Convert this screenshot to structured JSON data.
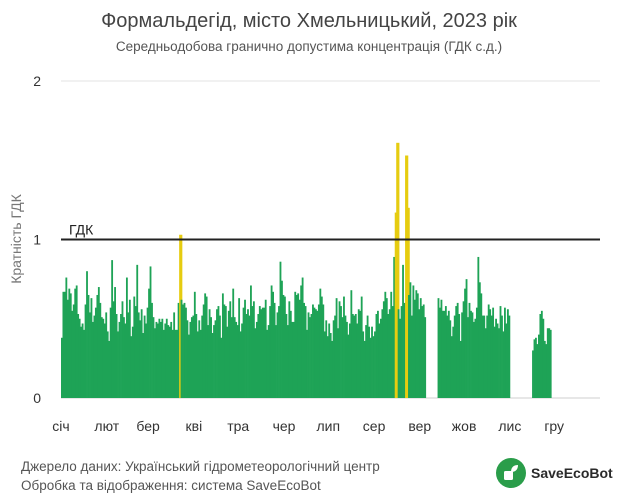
{
  "header": {
    "title": "Формальдегід, місто Хмельницький, 2023 рік",
    "subtitle": "Середньодобова гранично допустима концентрація (ГДК с.д.)"
  },
  "footer": {
    "source_line": "Джерело даних: Український гідрометеорологічний центр",
    "processing_line": "Обробка та відображення: система SaveEcoBot",
    "brand": "SaveEcoBot",
    "brand_icon": "saveecobot-logo-icon"
  },
  "chart_data": {
    "type": "bar",
    "ylabel": "Кратність ГДК",
    "ylim": [
      0,
      2
    ],
    "yticks": [
      "0",
      "1",
      "2"
    ],
    "grid": true,
    "limit_line": {
      "value": 1,
      "label": "ГДК"
    },
    "months": [
      "січ",
      "лют",
      "бер",
      "кві",
      "тра",
      "чер",
      "лип",
      "сер",
      "вер",
      "жов",
      "лис",
      "гру"
    ],
    "colors": {
      "normal": "#1ea356",
      "exceed": "#e6cc10",
      "limit": "#222222",
      "grid": "#e3e3e3"
    },
    "values": [
      0.38,
      0.67,
      0.67,
      0.76,
      0.62,
      0.69,
      0.66,
      0.55,
      0.59,
      0.69,
      0.71,
      0.53,
      0.5,
      0.45,
      0.47,
      0.43,
      0.59,
      0.8,
      0.65,
      0.54,
      0.63,
      0.48,
      0.52,
      0.57,
      0.65,
      0.7,
      0.6,
      0.51,
      0.5,
      0.47,
      0.54,
      0.42,
      0.36,
      0.57,
      0.87,
      0.61,
      0.7,
      0.53,
      0.42,
      0.48,
      0.53,
      0.61,
      0.51,
      0.47,
      0.76,
      0.54,
      0.62,
      0.39,
      0.45,
      0.64,
      0.58,
      0.84,
      0.54,
      0.49,
      0.56,
      0.41,
      0.52,
      0.47,
      0.57,
      0.69,
      0.83,
      0.6,
      0.51,
      0.44,
      0.48,
      0.47,
      0.5,
      0.48,
      0.5,
      0.43,
      0.47,
      0.5,
      0.46,
      0.45,
      0.48,
      0.43,
      0.54,
      0.43,
      0.43,
      0.6,
      1.03,
      0.62,
      0.59,
      0.6,
      0.57,
      0.49,
      0.4,
      0.48,
      0.51,
      0.52,
      0.67,
      0.53,
      0.42,
      0.49,
      0.43,
      0.52,
      0.59,
      0.66,
      0.64,
      0.46,
      0.56,
      0.51,
      0.41,
      0.46,
      0.49,
      0.56,
      0.58,
      0.52,
      0.38,
      0.66,
      0.59,
      0.58,
      0.45,
      0.55,
      0.61,
      0.51,
      0.69,
      0.51,
      0.48,
      0.46,
      0.63,
      0.42,
      0.47,
      0.57,
      0.62,
      0.53,
      0.56,
      0.52,
      0.71,
      0.58,
      0.61,
      0.44,
      0.48,
      0.53,
      0.58,
      0.56,
      0.57,
      0.57,
      0.62,
      0.43,
      0.46,
      0.58,
      0.71,
      0.67,
      0.6,
      0.46,
      0.54,
      0.58,
      0.86,
      0.74,
      0.65,
      0.64,
      0.53,
      0.46,
      0.61,
      0.55,
      0.48,
      0.48,
      0.67,
      0.65,
      0.66,
      0.62,
      0.71,
      0.76,
      0.6,
      0.58,
      0.43,
      0.54,
      0.51,
      0.53,
      0.59,
      0.57,
      0.56,
      0.55,
      0.59,
      0.69,
      0.64,
      0.59,
      0.42,
      0.49,
      0.39,
      0.47,
      0.41,
      0.36,
      0.49,
      0.52,
      0.63,
      0.44,
      0.61,
      0.58,
      0.51,
      0.64,
      0.52,
      0.48,
      0.4,
      0.47,
      0.68,
      0.53,
      0.52,
      0.53,
      0.47,
      0.56,
      0.55,
      0.64,
      0.42,
      0.36,
      0.46,
      0.52,
      0.45,
      0.38,
      0.45,
      0.39,
      0.42,
      0.53,
      0.55,
      0.47,
      0.5,
      0.56,
      0.61,
      0.67,
      0.63,
      0.53,
      0.56,
      0.67,
      0.58,
      0.89,
      1.17,
      1.61,
      0.56,
      0.5,
      0.58,
      0.84,
      0.6,
      1.53,
      1.2,
      0.65,
      0.73,
      0.52,
      0.71,
      0.62,
      0.68,
      0.66,
      0.56,
      0.63,
      0.58,
      0.59,
      0.51,
      null,
      null,
      null,
      null,
      null,
      null,
      null,
      null,
      0.63,
      0.57,
      0.62,
      0.55,
      0.55,
      0.58,
      0.52,
      0.55,
      0.49,
      0.39,
      0.45,
      0.52,
      0.58,
      0.6,
      0.53,
      0.36,
      0.54,
      0.61,
      0.69,
      0.75,
      0.51,
      0.6,
      0.55,
      0.54,
      0.48,
      0.5,
      0.57,
      0.89,
      0.73,
      0.66,
      0.52,
      0.52,
      0.44,
      0.52,
      0.59,
      0.56,
      0.52,
      0.57,
      0.45,
      0.5,
      0.47,
      0.44,
      0.58,
      0.52,
      0.42,
      0.57,
      0.47,
      0.56,
      0.52,
      null,
      null,
      null,
      null,
      null,
      null,
      null,
      null,
      null,
      null,
      null,
      null,
      null,
      null,
      null,
      0.3,
      0.37,
      0.38,
      0.34,
      0.4,
      0.53,
      0.55,
      0.5,
      0.36,
      0.34,
      0.44,
      0.44,
      0.43,
      null,
      null,
      null,
      null,
      null,
      null,
      null,
      null,
      null,
      null,
      null,
      null,
      null,
      null,
      null,
      null,
      null,
      null,
      null,
      null
    ]
  }
}
